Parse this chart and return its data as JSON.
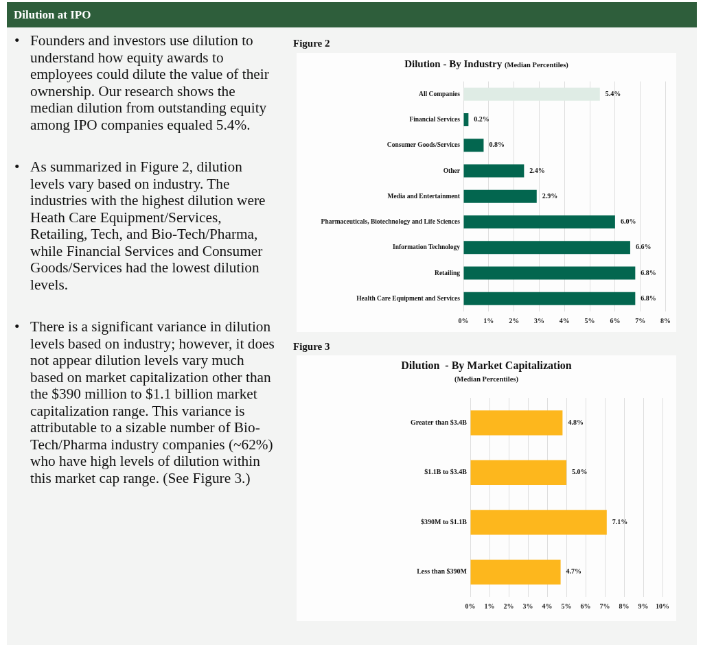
{
  "chart_data": [
    {
      "type": "other",
      "title": "Dilution at IPO",
      "annotations": [
        "• Founders and investors use dilution to understand how equity awards to employees could dilute the value of their ownership. Our research shows the median dilution from outstanding equity among IPO companies equaled 5.4%.",
        "• As summarized in Figure 2, dilution levels vary based on industry. The industries with the highest dilution were Heath Care Equipment/Services, Retailing, Tech, and Bio-Tech/Pharma, while Financial Services and Consumer Goods/Services had the lowest dilution levels.",
        "• There is a significant variance in dilution levels based on industry; however, it does not appear dilution levels vary much based on market capitalization other than the $390 million to $1.1 billion market capitalization range. This variance is attributable to a sizable number of Bio-Tech/Pharma industry companies (~62%) who have high levels of dilution within this market cap range. (See Figure 3.)"
      ]
    },
    {
      "type": "bar",
      "orientation": "horizontal",
      "title": "Dilution - By Industry",
      "subtitle": "(Median Percentiles)",
      "annotations": [
        "Figure 2"
      ],
      "categories": [
        "All Companies",
        "Financial Services",
        "Consumer Goods/Services",
        "Other",
        "Media and Entertainment",
        "Pharmaceuticals, Biotechnology and Life Sciences",
        "Information Technology",
        "Retailing",
        "Health Care Equipment and Services"
      ],
      "values": [
        5.4,
        0.2,
        0.8,
        2.4,
        2.9,
        6.0,
        6.6,
        6.8,
        6.8
      ],
      "colors": [
        "#dfece5",
        "#03664f",
        "#03664f",
        "#03664f",
        "#03664f",
        "#03664f",
        "#03664f",
        "#03664f",
        "#03664f"
      ],
      "value_labels": [
        "5.4%",
        "0.2%",
        "0.8%",
        "2.4%",
        "2.9%",
        "6.0%",
        "6.6%",
        "6.8%",
        "6.8%"
      ],
      "xlim": [
        0,
        8
      ],
      "xticks": [
        {
          "value": 0,
          "label": "0%"
        },
        {
          "value": 1,
          "label": "1%"
        },
        {
          "value": 2,
          "label": "2%"
        },
        {
          "value": 3,
          "label": "3%"
        },
        {
          "value": 4,
          "label": "4%"
        },
        {
          "value": 5,
          "label": "5%"
        },
        {
          "value": 6,
          "label": "6%"
        },
        {
          "value": 7,
          "label": "7%"
        },
        {
          "value": 8,
          "label": "8%"
        }
      ],
      "grid": "x"
    },
    {
      "type": "bar",
      "orientation": "horizontal",
      "title": "Dilution  - By Market Capitalization",
      "subtitle": "(Median Percentiles)",
      "annotations": [
        "Figure 3"
      ],
      "categories": [
        "Greater than $3.4B",
        "$1.1B to $3.4B",
        "$390M to $1.1B",
        "Less than $390M"
      ],
      "values": [
        4.8,
        5.0,
        7.1,
        4.7
      ],
      "colors": [
        "#fdb71d",
        "#fdb71d",
        "#fdb71d",
        "#fdb71d"
      ],
      "value_labels": [
        "4.8%",
        "5.0%",
        "7.1%",
        "4.7%"
      ],
      "xlim": [
        0,
        10
      ],
      "xticks": [
        {
          "value": 0,
          "label": "0%"
        },
        {
          "value": 1,
          "label": "1%"
        },
        {
          "value": 2,
          "label": "2%"
        },
        {
          "value": 3,
          "label": "3%"
        },
        {
          "value": 4,
          "label": "4%"
        },
        {
          "value": 5,
          "label": "5%"
        },
        {
          "value": 6,
          "label": "6%"
        },
        {
          "value": 7,
          "label": "7%"
        },
        {
          "value": 8,
          "label": "8%"
        },
        {
          "value": 9,
          "label": "9%"
        },
        {
          "value": 10,
          "label": "10%"
        }
      ],
      "grid": "x"
    }
  ]
}
